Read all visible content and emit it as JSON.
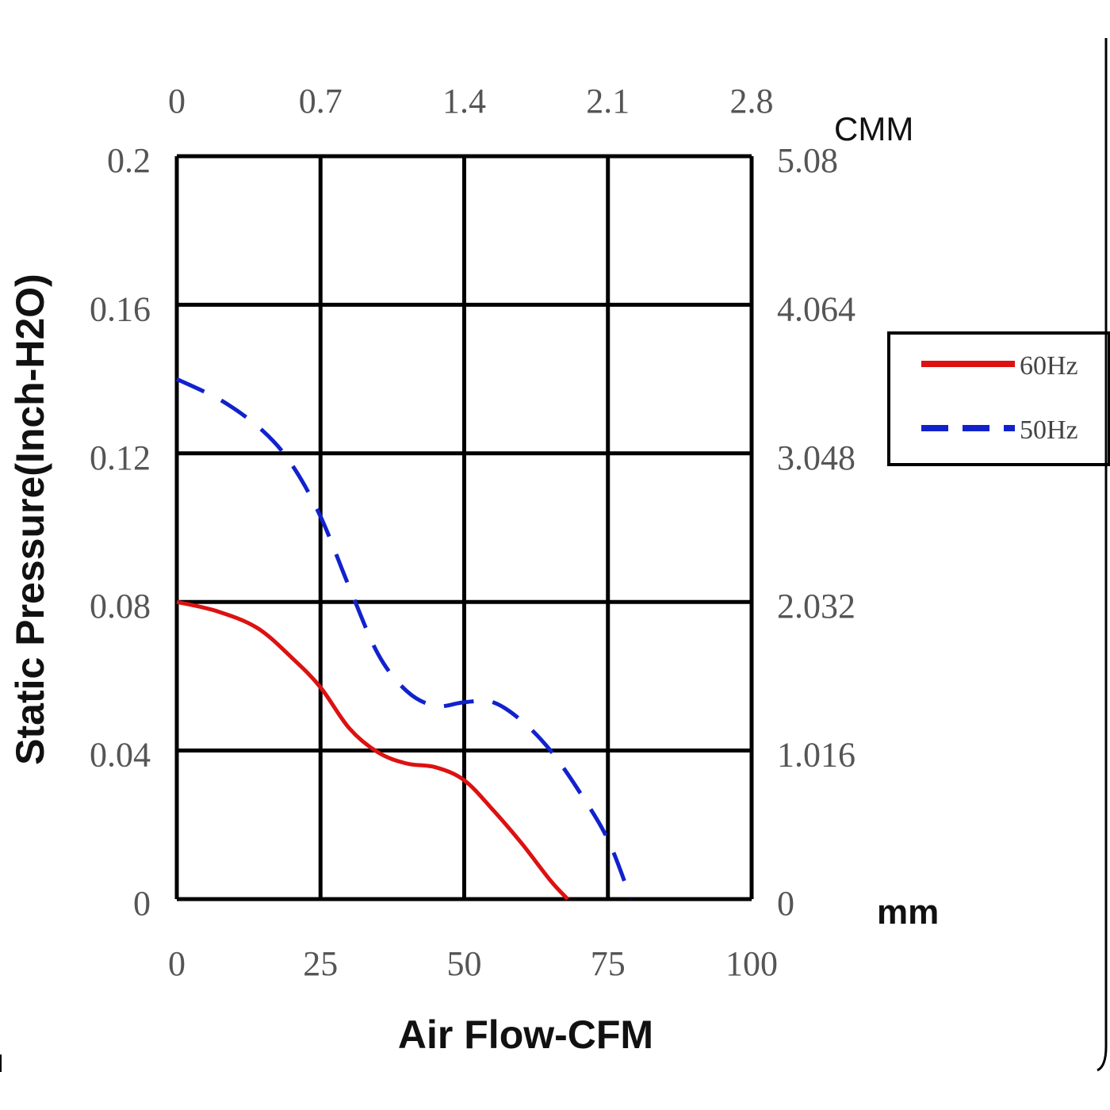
{
  "chart_data": {
    "type": "line",
    "xlabel": "Air Flow-CFM",
    "ylabel": "Static Pressure(Inch-H2O)",
    "xlim": [
      0,
      100
    ],
    "ylim": [
      0,
      0.2
    ],
    "x_ticks": [
      "0",
      "25",
      "50",
      "75",
      "100"
    ],
    "y_ticks": [
      "0",
      "0.04",
      "0.08",
      "0.12",
      "0.16",
      "0.2"
    ],
    "x2_unit": "CMM",
    "x2_ticks": [
      "0",
      "0.7",
      "1.4",
      "2.1",
      "2.8"
    ],
    "y2_unit": "mm",
    "y2_ticks": [
      "0",
      "1.016",
      "2.032",
      "3.048",
      "4.064",
      "5.08"
    ],
    "grid": true,
    "legend_position": "right",
    "series": [
      {
        "name": "60Hz",
        "color": "#dd1111",
        "style": "solid",
        "x": [
          0,
          7,
          14,
          20,
          25,
          30,
          35,
          40,
          45,
          50,
          55,
          60,
          65,
          68
        ],
        "y": [
          0.08,
          0.0775,
          0.073,
          0.065,
          0.057,
          0.046,
          0.0395,
          0.0365,
          0.0355,
          0.032,
          0.024,
          0.015,
          0.005,
          0.0
        ]
      },
      {
        "name": "50Hz",
        "color": "#1122cc",
        "style": "dashed",
        "x": [
          0,
          8,
          15,
          20,
          25,
          30,
          35,
          40,
          45,
          50,
          55,
          60,
          65,
          70,
          75,
          79
        ],
        "y": [
          0.14,
          0.134,
          0.126,
          0.117,
          0.103,
          0.084,
          0.066,
          0.056,
          0.052,
          0.053,
          0.053,
          0.048,
          0.04,
          0.029,
          0.016,
          0.0
        ]
      }
    ]
  }
}
